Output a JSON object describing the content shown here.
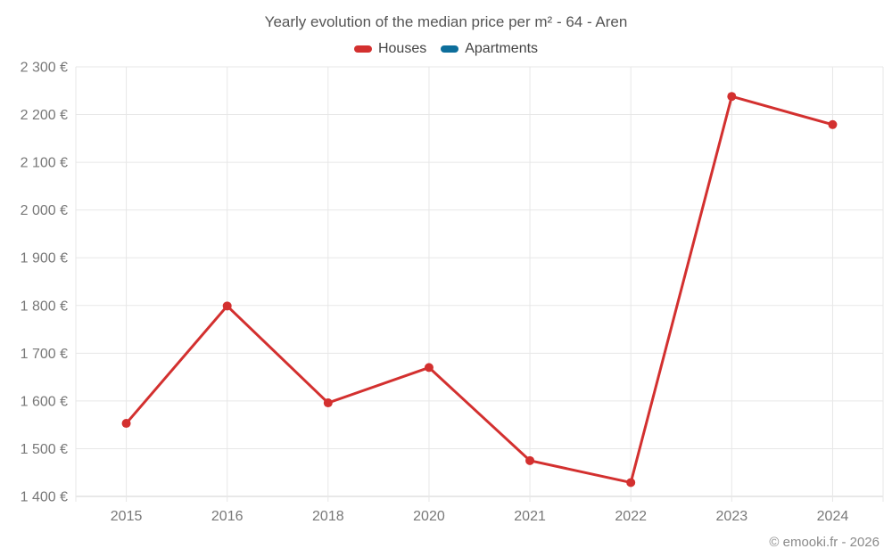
{
  "chart_data": {
    "type": "line",
    "title": "Yearly evolution of the median price per m² - 64 - Aren",
    "categories": [
      "2015",
      "2016",
      "2018",
      "2020",
      "2021",
      "2022",
      "2023",
      "2024"
    ],
    "series": [
      {
        "name": "Houses",
        "color": "#d3302f",
        "values": [
          1553,
          1799,
          1596,
          1670,
          1475,
          1429,
          2238,
          2179
        ]
      },
      {
        "name": "Apartments",
        "color": "#0d6e9b",
        "values": []
      }
    ],
    "xlabel": "",
    "ylabel": "",
    "ylim": [
      1400,
      2300
    ],
    "yticks": [
      1400,
      1500,
      1600,
      1700,
      1800,
      1900,
      2000,
      2100,
      2200,
      2300
    ],
    "ytick_labels": [
      "1 400 €",
      "1 500 €",
      "1 600 €",
      "1 700 €",
      "1 800 €",
      "1 900 €",
      "2 000 €",
      "2 100 €",
      "2 200 €",
      "2 300 €"
    ],
    "grid": true,
    "legend_position": "top",
    "point_radius": 5
  },
  "footer": {
    "text": "© emooki.fr - 2026"
  }
}
